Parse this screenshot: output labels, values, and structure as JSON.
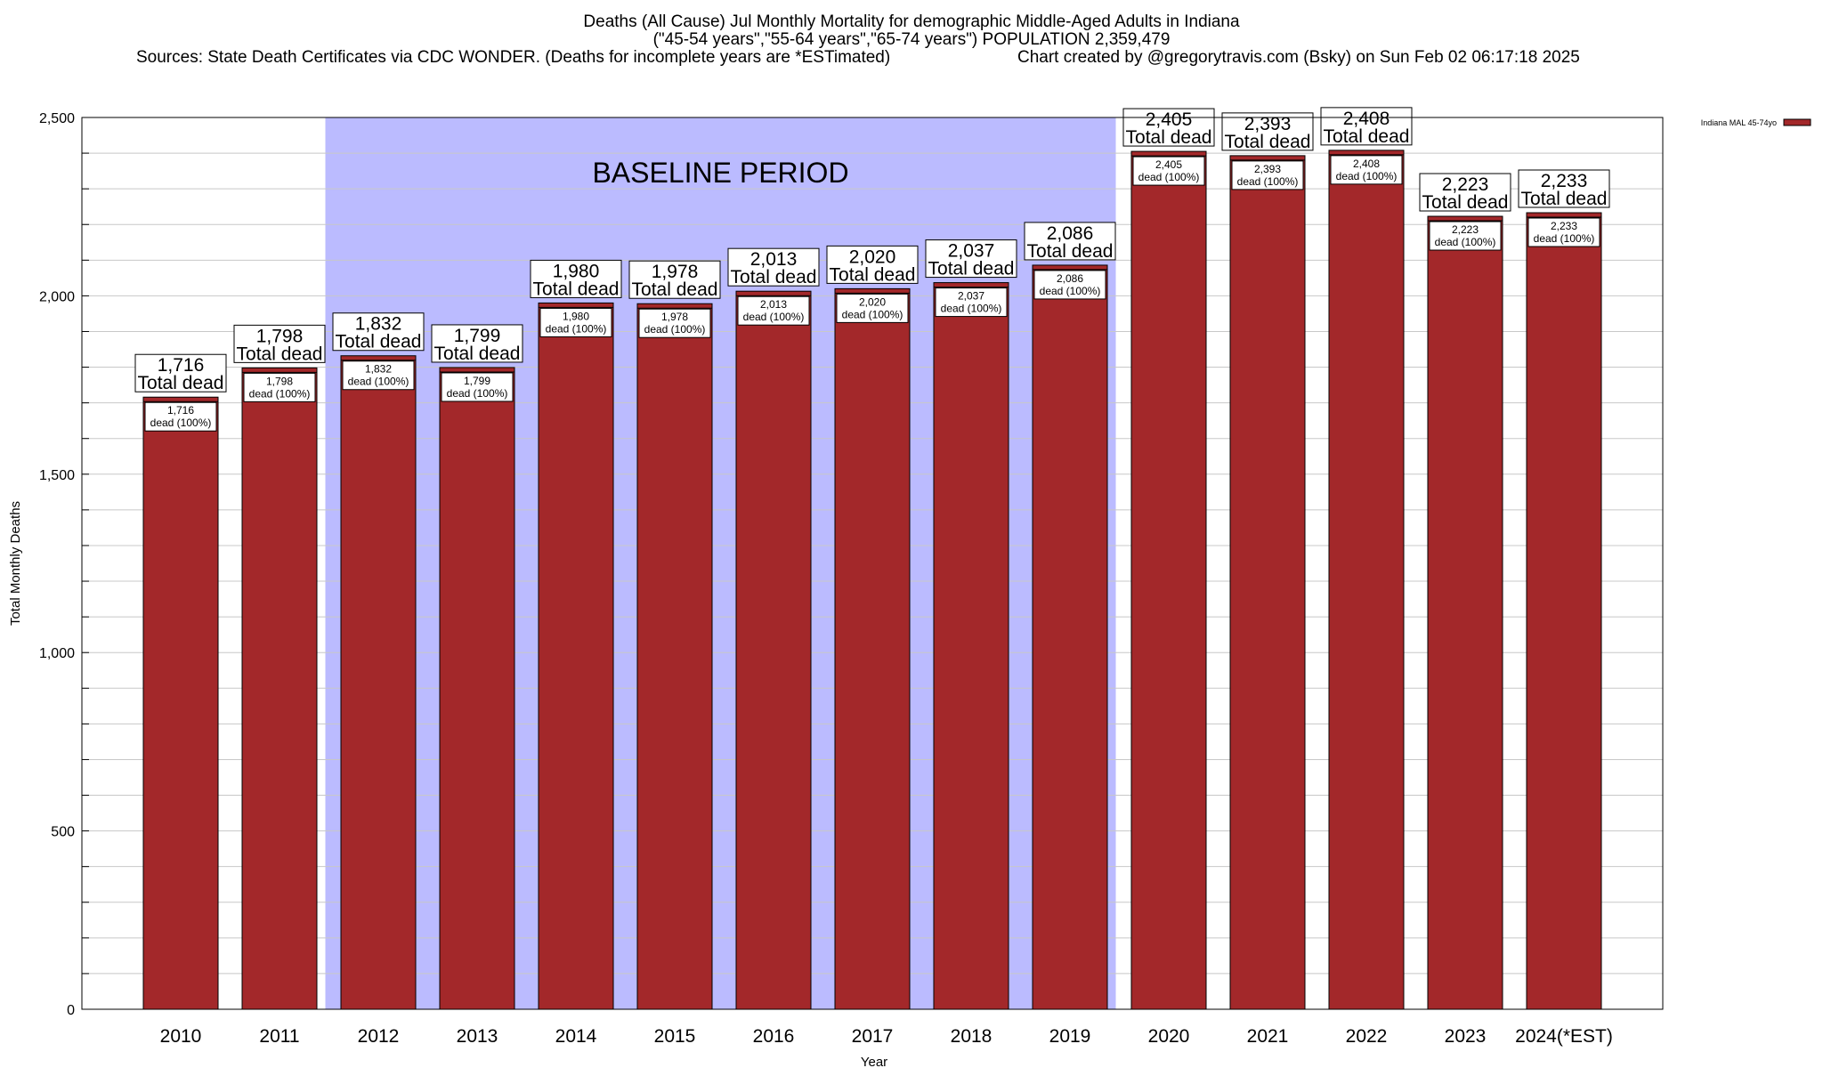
{
  "header": {
    "title_line1": "Deaths (All Cause) Jul Monthly Mortality for demographic Middle-Aged Adults in Indiana",
    "title_line2": "(\"45-54 years\",\"55-64 years\",\"65-74 years\") POPULATION 2,359,479",
    "sources": "Sources: State Death Certificates via CDC WONDER. (Deaths for incomplete years are *ESTimated)",
    "credit": "Chart created by @gregorytravis.com (Bsky) on Sun Feb 02 06:17:18 2025"
  },
  "chart_data": {
    "type": "bar",
    "categories": [
      "2010",
      "2011",
      "2012",
      "2013",
      "2014",
      "2015",
      "2016",
      "2017",
      "2018",
      "2019",
      "2020",
      "2021",
      "2022",
      "2023",
      "2024(*EST)"
    ],
    "series": [
      {
        "name": "Indiana MAL 45-74yo",
        "values": [
          1716,
          1798,
          1832,
          1799,
          1980,
          1978,
          2013,
          2020,
          2037,
          2086,
          2405,
          2393,
          2408,
          2223,
          2233
        ]
      }
    ],
    "total_labels": [
      "1,716",
      "1,798",
      "1,832",
      "1,799",
      "1,980",
      "1,978",
      "2,013",
      "2,020",
      "2,037",
      "2,086",
      "2,405",
      "2,393",
      "2,408",
      "2,223",
      "2,233"
    ],
    "total_suffix": "Total dead",
    "segment_suffix": "dead (100%)",
    "xlabel": "Year",
    "ylabel": "Total Monthly Deaths",
    "ylim": [
      0,
      2500
    ],
    "yticks": [
      0,
      500,
      1000,
      1500,
      2000,
      2500
    ],
    "ytick_labels": [
      "0",
      "500",
      "1,000",
      "1,500",
      "2,000",
      "2,500"
    ],
    "minor_grid_step": 100,
    "grid": true,
    "legend_position": "top-right",
    "baseline_period": {
      "label": "BASELINE PERIOD",
      "start": "2012",
      "end": "2019"
    },
    "colors": {
      "bar": "#a3282a",
      "baseline_shade": "#bbbbff",
      "grid": "#c8c8c8"
    }
  }
}
